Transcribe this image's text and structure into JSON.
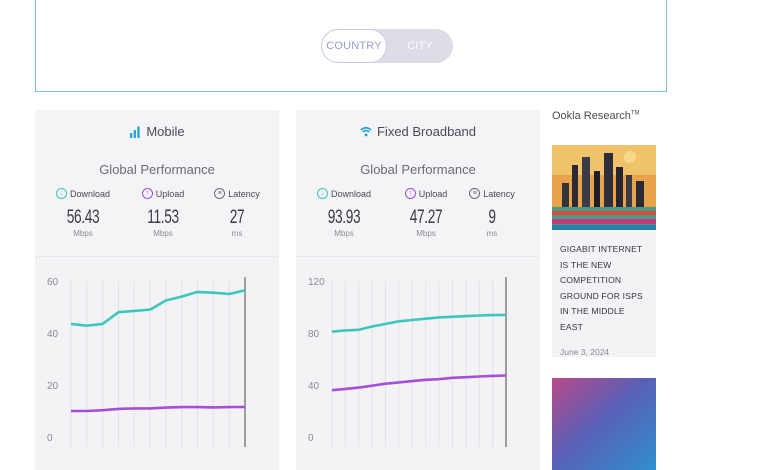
{
  "toggle": {
    "options": [
      "COUNTRY",
      "CITY"
    ],
    "selected": "COUNTRY"
  },
  "cards": [
    {
      "title": "Mobile",
      "icon": "signal-bars-icon",
      "subtitle": "Global Performance",
      "metrics": [
        {
          "label": "Download",
          "value": "56.43",
          "unit": "Mbps",
          "color": "#3cc7bd"
        },
        {
          "label": "Upload",
          "value": "11.53",
          "unit": "Mbps",
          "color": "#9b4fd6"
        },
        {
          "label": "Latency",
          "value": "27",
          "unit": "ms",
          "color": "#6a6a78"
        }
      ],
      "chart": {
        "yticks": [
          "60",
          "40",
          "20",
          "0"
        ]
      }
    },
    {
      "title": "Fixed Broadband",
      "icon": "wifi-icon",
      "subtitle": "Global Performance",
      "metrics": [
        {
          "label": "Download",
          "value": "93.93",
          "unit": "Mbps",
          "color": "#3cc7bd"
        },
        {
          "label": "Upload",
          "value": "47.27",
          "unit": "Mbps",
          "color": "#9b4fd6"
        },
        {
          "label": "Latency",
          "value": "9",
          "unit": "ms",
          "color": "#6a6a78"
        }
      ],
      "chart": {
        "yticks": [
          "120",
          "80",
          "40",
          "0"
        ]
      }
    }
  ],
  "chart_data": [
    {
      "type": "line",
      "ylim": [
        0,
        60
      ],
      "series": [
        {
          "values": [
            43.5,
            42.8,
            43.5,
            48,
            48.5,
            49,
            52.5,
            54,
            55.8,
            55.5,
            55,
            56.43
          ],
          "color": "#3cc7bd"
        },
        {
          "values": [
            10,
            10,
            10.3,
            10.8,
            11,
            11,
            11.3,
            11.5,
            11.5,
            11.4,
            11.5,
            11.53
          ],
          "color": "#a54fd9"
        }
      ]
    },
    {
      "type": "line",
      "ylim": [
        0,
        120
      ],
      "series": [
        {
          "values": [
            81,
            82,
            82.5,
            85,
            87,
            89,
            90,
            91,
            92,
            92.5,
            93,
            93.5,
            93.8,
            93.93
          ],
          "color": "#3cc7bd"
        },
        {
          "values": [
            36,
            37,
            38,
            39.5,
            41,
            42,
            43,
            44,
            44.5,
            45.5,
            46,
            46.5,
            47,
            47.27
          ],
          "color": "#a54fd9"
        }
      ]
    }
  ],
  "sidebar": {
    "brand": "Ookla Research",
    "brand_tm": "TM",
    "article": {
      "title": "GIGABIT INTERNET IS THE NEW COMPETITION GROUND FOR ISPS IN THE MIDDLE EAST",
      "date": "June 3, 2024"
    }
  }
}
